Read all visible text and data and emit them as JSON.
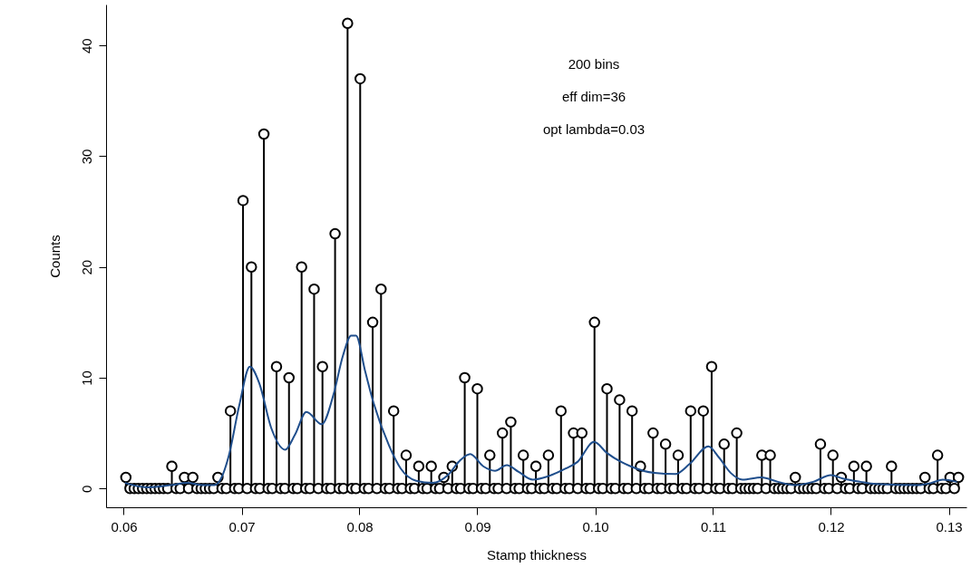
{
  "chart_data": {
    "type": "lollipop",
    "xlabel": "Stamp thickness",
    "ylabel": "Counts",
    "annotations": [
      "200 bins",
      "eff dim=36",
      "opt lambda=0.03"
    ],
    "xlim": [
      0.0585,
      0.1315
    ],
    "xticks": [
      0.06,
      0.07,
      0.08,
      0.09,
      {
        "value": 0.1,
        "label": "0.10"
      },
      0.11,
      0.12,
      0.13
    ],
    "ylim": [
      -1.7,
      43.7
    ],
    "yticks": [
      0,
      10,
      20,
      30,
      40
    ],
    "series": [
      {
        "color": "#000000",
        "marker": "circle",
        "x": [
          0.06018,
          0.06053,
          0.06089,
          0.06124,
          0.0616,
          0.06195,
          0.06231,
          0.06266,
          0.06302,
          0.06337,
          0.06373,
          0.06408,
          0.06444,
          0.06479,
          0.06515,
          0.0655,
          0.06586,
          0.06621,
          0.06657,
          0.06692,
          0.06728,
          0.06763,
          0.06799,
          0.06834,
          0.0687,
          0.06905,
          0.06941,
          0.06976,
          0.07012,
          0.07047,
          0.07083,
          0.07118,
          0.07154,
          0.07189,
          0.07225,
          0.0726,
          0.07296,
          0.07331,
          0.07367,
          0.07402,
          0.07438,
          0.07473,
          0.07509,
          0.07544,
          0.0758,
          0.07615,
          0.07651,
          0.07686,
          0.07722,
          0.07757,
          0.07793,
          0.07828,
          0.07864,
          0.07899,
          0.07935,
          0.0797,
          0.08006,
          0.08041,
          0.08077,
          0.08112,
          0.08148,
          0.08183,
          0.08219,
          0.08254,
          0.0829,
          0.08325,
          0.08361,
          0.08396,
          0.08432,
          0.08467,
          0.08503,
          0.08538,
          0.08574,
          0.08609,
          0.08645,
          0.0868,
          0.08716,
          0.08751,
          0.08787,
          0.08822,
          0.08858,
          0.08893,
          0.08929,
          0.08964,
          0.09,
          0.09035,
          0.09071,
          0.09106,
          0.09142,
          0.09177,
          0.09213,
          0.09248,
          0.09284,
          0.09319,
          0.09355,
          0.0939,
          0.09426,
          0.09461,
          0.09497,
          0.09532,
          0.09568,
          0.09603,
          0.09639,
          0.09674,
          0.0971,
          0.09745,
          0.09781,
          0.09816,
          0.09852,
          0.09887,
          0.09923,
          0.09958,
          0.09994,
          0.10029,
          0.10065,
          0.101,
          0.10136,
          0.10171,
          0.10207,
          0.10242,
          0.10278,
          0.10313,
          0.10349,
          0.10384,
          0.1042,
          0.10455,
          0.10491,
          0.10526,
          0.10562,
          0.10597,
          0.10633,
          0.10668,
          0.10704,
          0.10739,
          0.10775,
          0.1081,
          0.10846,
          0.10881,
          0.10917,
          0.10952,
          0.10988,
          0.11023,
          0.11059,
          0.11094,
          0.1113,
          0.11165,
          0.11201,
          0.11236,
          0.11272,
          0.11307,
          0.11343,
          0.11378,
          0.11414,
          0.11449,
          0.11485,
          0.1152,
          0.11556,
          0.11591,
          0.11627,
          0.11662,
          0.11698,
          0.11733,
          0.11769,
          0.11804,
          0.1184,
          0.11875,
          0.11911,
          0.11946,
          0.11982,
          0.12017,
          0.12053,
          0.12088,
          0.12124,
          0.12159,
          0.12195,
          0.1223,
          0.12266,
          0.12301,
          0.12337,
          0.12372,
          0.12408,
          0.12443,
          0.12479,
          0.12514,
          0.1255,
          0.12585,
          0.12621,
          0.12656,
          0.12692,
          0.12727,
          0.12763,
          0.12798,
          0.12834,
          0.12869,
          0.12905,
          0.1294,
          0.12976,
          0.13011,
          0.13047,
          0.13082
        ],
        "values": [
          1,
          0,
          0,
          0,
          0,
          0,
          0,
          0,
          0,
          0,
          0,
          2,
          0,
          0,
          1,
          0,
          1,
          0,
          0,
          0,
          0,
          0,
          1,
          0,
          0,
          7,
          0,
          0,
          26,
          0,
          20,
          0,
          0,
          32,
          0,
          0,
          11,
          0,
          0,
          10,
          0,
          0,
          20,
          0,
          0,
          18,
          0,
          11,
          0,
          0,
          23,
          0,
          0,
          42,
          0,
          0,
          37,
          0,
          0,
          15,
          0,
          18,
          0,
          0,
          7,
          0,
          0,
          3,
          0,
          0,
          2,
          0,
          0,
          2,
          0,
          0,
          1,
          0,
          2,
          0,
          0,
          10,
          0,
          0,
          9,
          0,
          0,
          3,
          0,
          0,
          5,
          0,
          6,
          0,
          0,
          3,
          0,
          0,
          2,
          0,
          0,
          3,
          0,
          0,
          7,
          0,
          0,
          5,
          0,
          5,
          0,
          0,
          15,
          0,
          0,
          9,
          0,
          0,
          8,
          0,
          0,
          7,
          0,
          2,
          0,
          0,
          5,
          0,
          0,
          4,
          0,
          0,
          3,
          0,
          0,
          7,
          0,
          0,
          7,
          0,
          11,
          0,
          0,
          4,
          0,
          0,
          5,
          0,
          0,
          0,
          0,
          0,
          3,
          0,
          3,
          0,
          0,
          0,
          0,
          0,
          1,
          0,
          0,
          0,
          0,
          0,
          4,
          0,
          0,
          3,
          0,
          1,
          0,
          0,
          2,
          0,
          0,
          2,
          0,
          0,
          0,
          0,
          0,
          2,
          0,
          0,
          0,
          0,
          0,
          0,
          0,
          1,
          0,
          0,
          3,
          0,
          0,
          1,
          0,
          1
        ]
      },
      {
        "type": "line",
        "color": "#1f4e8c",
        "x": [
          0.0601,
          0.062,
          0.064,
          0.0654,
          0.0667,
          0.0677,
          0.0683,
          0.0689,
          0.0698,
          0.0707,
          0.0715,
          0.0725,
          0.0737,
          0.0745,
          0.0755,
          0.0768,
          0.0778,
          0.0786,
          0.0793,
          0.0797,
          0.0805,
          0.0812,
          0.0825,
          0.0835,
          0.0848,
          0.0862,
          0.0875,
          0.0885,
          0.0894,
          0.0905,
          0.0915,
          0.0925,
          0.0935,
          0.0947,
          0.096,
          0.0975,
          0.0985,
          0.0999,
          0.101,
          0.103,
          0.105,
          0.1068,
          0.108,
          0.1096,
          0.1105,
          0.1115,
          0.1125,
          0.1141,
          0.1155,
          0.1169,
          0.1185,
          0.12,
          0.121,
          0.1225,
          0.1238,
          0.1274,
          0.1285,
          0.1295,
          0.1307
        ],
        "values": [
          0.5,
          0.1,
          0.3,
          0.5,
          0.3,
          0.3,
          1.0,
          2.9,
          7.5,
          11.0,
          9.5,
          5.5,
          3.5,
          4.8,
          6.9,
          5.8,
          8.5,
          12.0,
          13.8,
          13.8,
          10.5,
          7.7,
          3.9,
          1.8,
          0.7,
          0.5,
          1.2,
          2.5,
          3.1,
          2.0,
          1.6,
          2.1,
          1.5,
          0.8,
          1.1,
          1.8,
          2.4,
          4.2,
          3.2,
          2.0,
          1.4,
          1.3,
          2.2,
          3.8,
          2.8,
          1.4,
          0.8,
          1.0,
          0.6,
          0.3,
          0.6,
          1.2,
          0.9,
          0.6,
          0.4,
          0.3,
          0.5,
          0.8,
          0.6
        ]
      }
    ]
  }
}
